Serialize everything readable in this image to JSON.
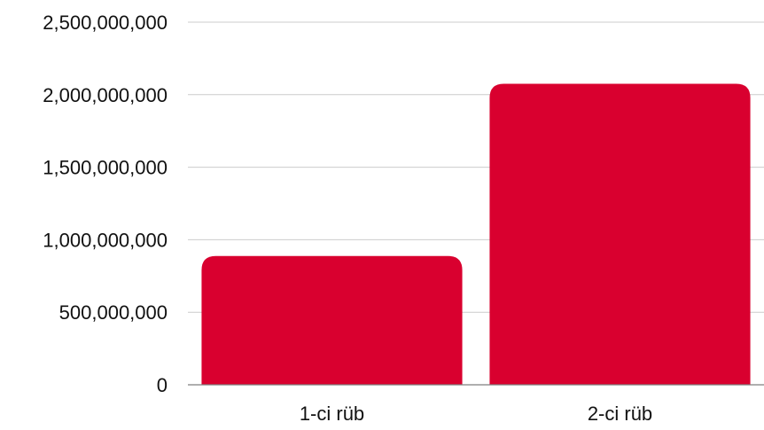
{
  "chart_data": {
    "type": "bar",
    "categories": [
      "1-ci rüb",
      "2-ci rüb"
    ],
    "values": [
      888000000,
      2075000000
    ],
    "title": "",
    "xlabel": "",
    "ylabel": "",
    "ylim": [
      0,
      2500000000
    ],
    "yticks": [
      0,
      500000000,
      1000000000,
      1500000000,
      2000000000,
      2500000000
    ],
    "ytick_labels": [
      "0",
      "500,000,000",
      "1,000,000,000",
      "1,500,000,000",
      "2,000,000,000",
      "2,500,000,000"
    ],
    "grid": true,
    "legend": "none",
    "bar_color": "#d9002f",
    "grid_color": "#cccccc",
    "axis_color": "#7f7f7f"
  }
}
